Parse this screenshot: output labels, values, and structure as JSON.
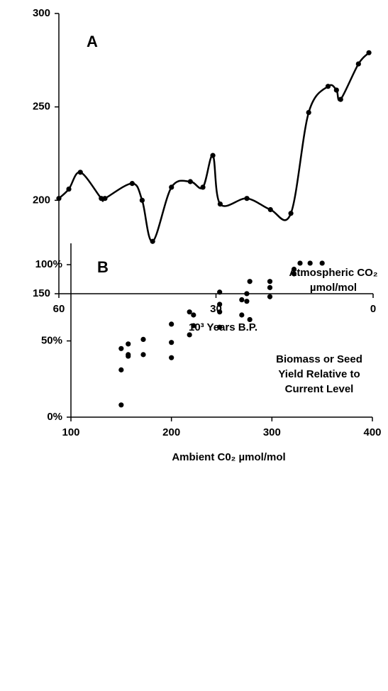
{
  "chart_data": [
    {
      "type": "line",
      "panel_label": "A",
      "annotation": [
        "Atmospheric CO₂",
        "µmol/mol"
      ],
      "x_label": "10³ Years B.P.",
      "x": [
        60,
        58.1,
        55.9,
        51.9,
        51.2,
        46.0,
        44.1,
        42.1,
        38.5,
        34.9,
        32.5,
        30.6,
        29.2,
        24.1,
        19.6,
        15.7,
        12.3,
        8.6,
        7.0,
        6.2,
        2.8,
        0.8
      ],
      "values": [
        201,
        206,
        215,
        201,
        201,
        209,
        200,
        178,
        207,
        210,
        207,
        224,
        198,
        201,
        195,
        193,
        247,
        261,
        259,
        254,
        273,
        279
      ],
      "color": "#000000",
      "xlim": [
        60,
        0
      ],
      "xticks": [
        60,
        30,
        0
      ],
      "ylim": [
        150,
        300
      ],
      "yticks": [
        150,
        200,
        250,
        300
      ]
    },
    {
      "type": "scatter",
      "panel_label": "B",
      "annotation": [
        "Biomass or Seed",
        "Yield Relative to",
        "Current Level"
      ],
      "x_label": "Ambient C0₂ µmol/mol",
      "x": [
        150,
        150,
        150,
        157,
        157,
        157,
        172,
        172,
        200,
        200,
        200,
        218,
        218,
        222,
        222,
        248,
        248,
        248,
        248,
        270,
        270,
        275,
        275,
        278,
        278,
        298,
        298,
        298,
        322,
        322,
        328,
        338,
        350
      ],
      "values": [
        45,
        31,
        8,
        48,
        41,
        40,
        51,
        41,
        61,
        49,
        39,
        69,
        54,
        67,
        60,
        82,
        74,
        69,
        59,
        77,
        67,
        81,
        76,
        89,
        64,
        89,
        85,
        79,
        97,
        94,
        101,
        101,
        101
      ],
      "color": "#000000",
      "xlim": [
        100,
        400
      ],
      "xticks": [
        100,
        200,
        300,
        400
      ],
      "ylim": [
        0,
        114
      ],
      "yticks": [
        {
          "value": 0,
          "label": "0%"
        },
        {
          "value": 50,
          "label": "50%"
        },
        {
          "value": 100,
          "label": "100%"
        }
      ]
    }
  ]
}
